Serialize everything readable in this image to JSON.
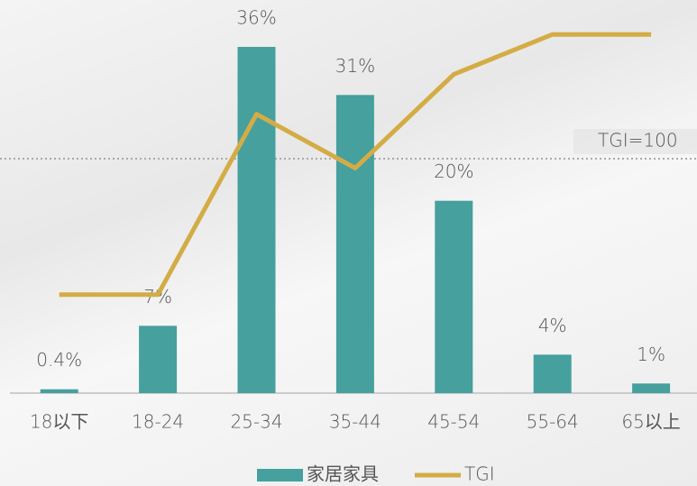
{
  "chart_data": {
    "type": "bar",
    "categories": [
      "18以下",
      "18-24",
      "25-34",
      "35-44",
      "45-54",
      "55-64",
      "65以上"
    ],
    "series": [
      {
        "name": "家居家具",
        "type": "bar",
        "color": "#45a09e",
        "values": [
          0.4,
          7,
          36,
          31,
          20,
          4,
          1
        ],
        "value_labels": [
          "0.4%",
          "7%",
          "36%",
          "31%",
          "20%",
          "4%",
          "1%"
        ]
      },
      {
        "name": "TGI",
        "type": "line",
        "axis": "y2",
        "color": "#d4ac45",
        "values": [
          42,
          42,
          119,
          96,
          136,
          153,
          153
        ]
      }
    ],
    "ylim": [
      0,
      39
    ],
    "y2lim": [
      0,
      160
    ],
    "reference_line": {
      "value": 100,
      "label": "TGI=100",
      "axis": "y2"
    },
    "legend": "bottom"
  }
}
